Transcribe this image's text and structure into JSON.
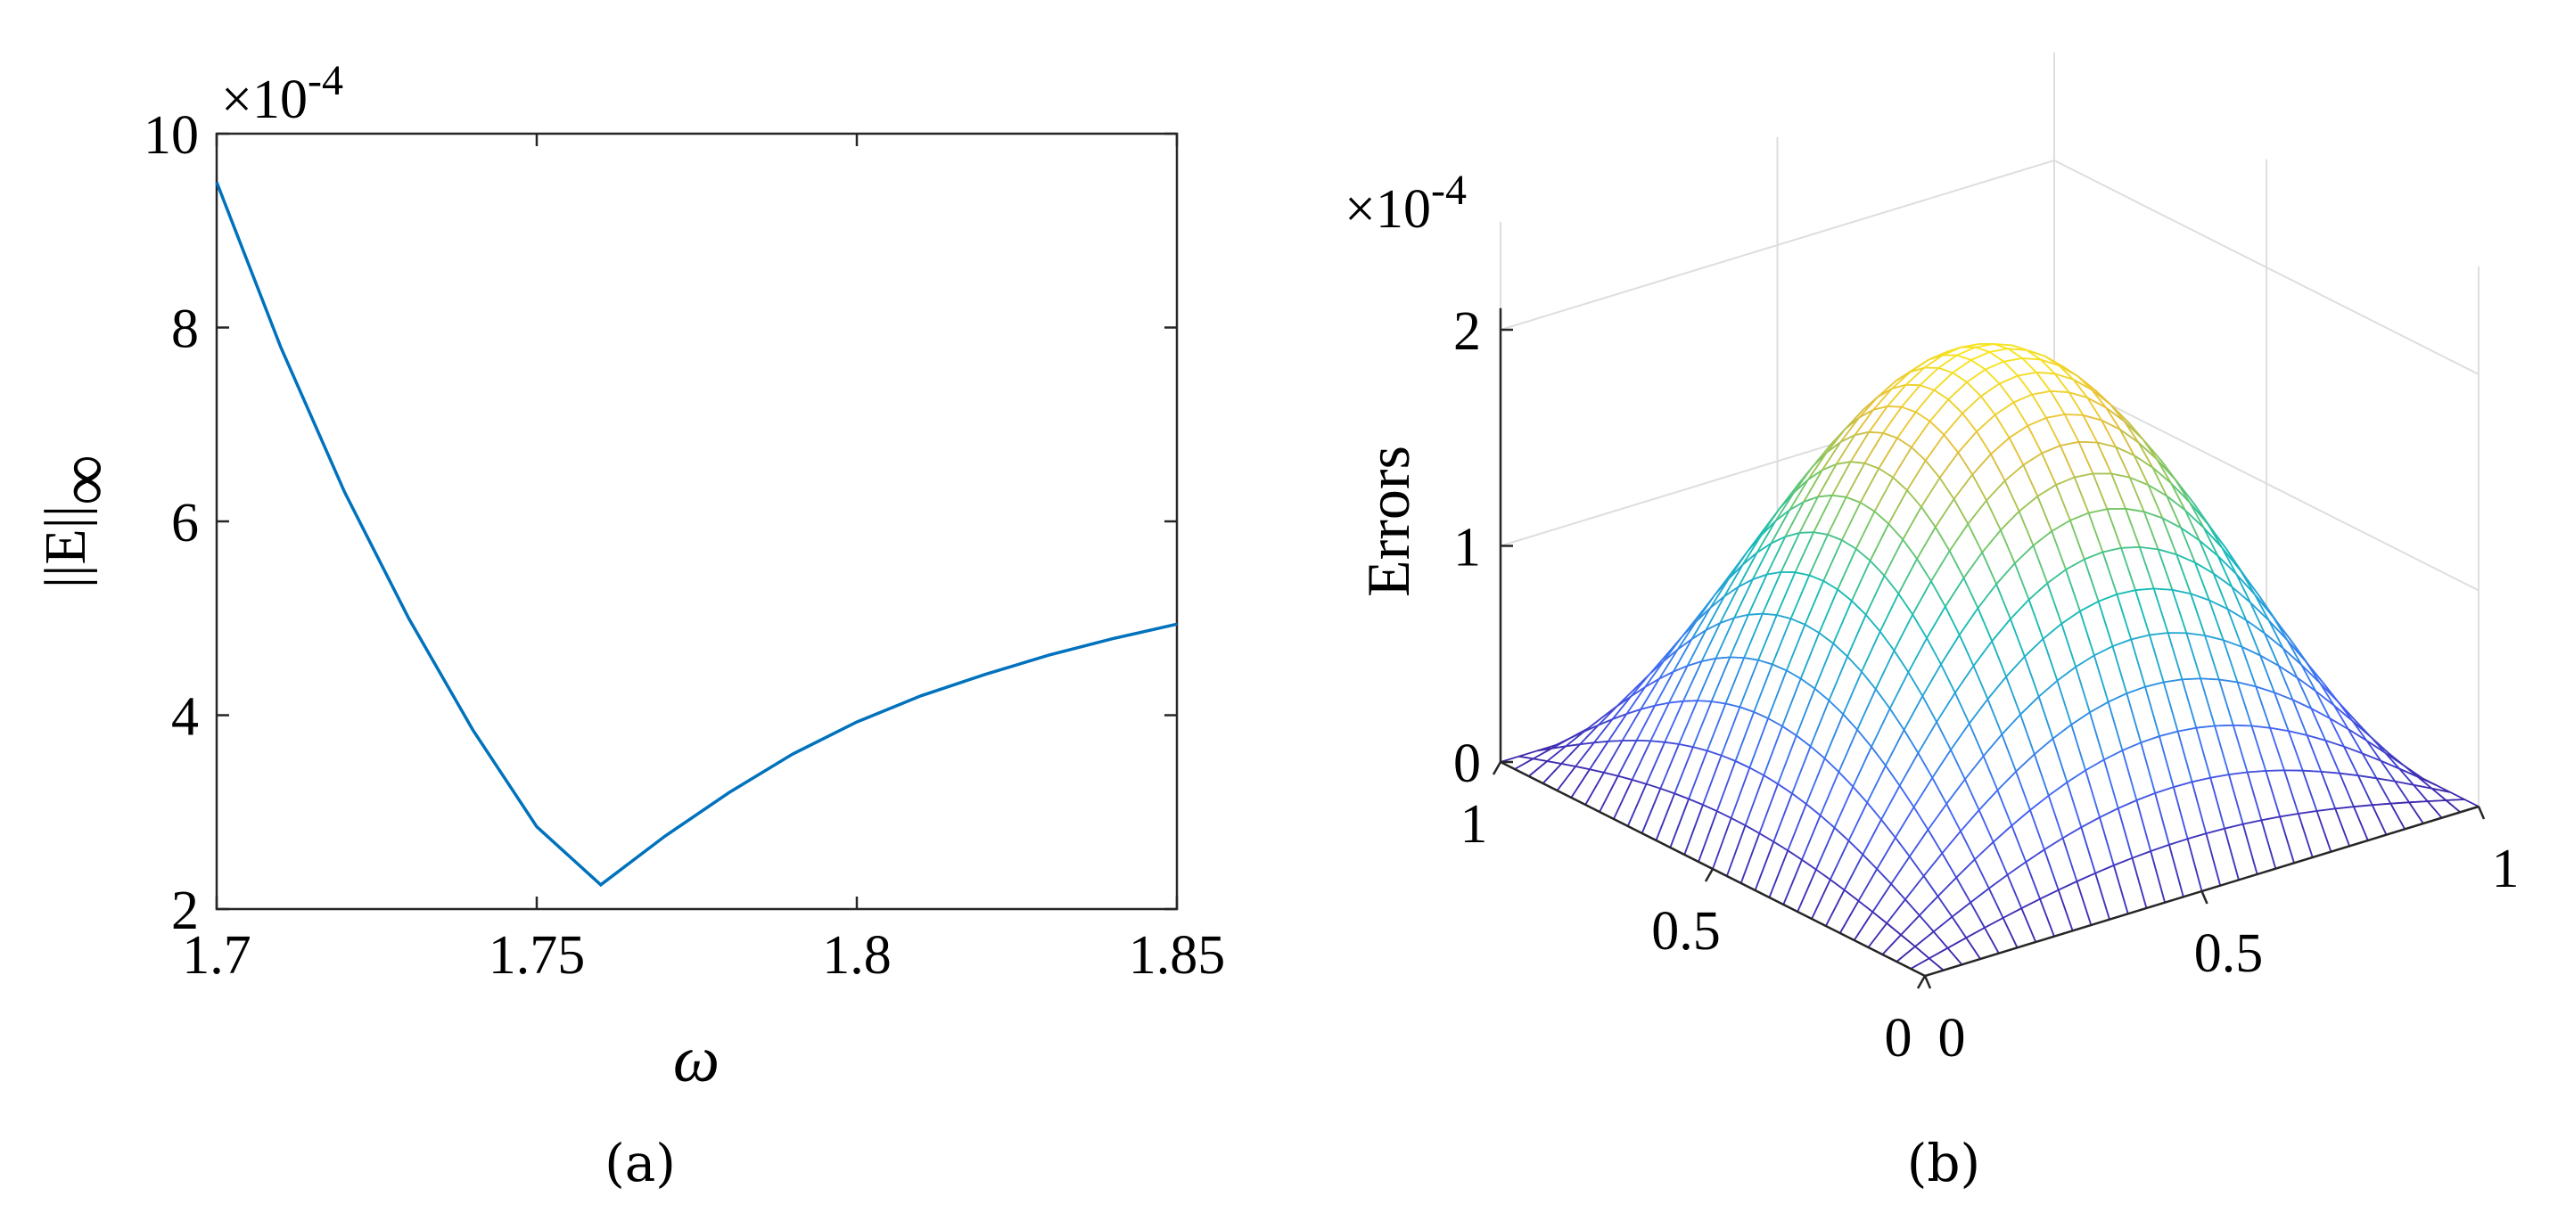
{
  "chart_data": [
    {
      "type": "line",
      "caption": "(a)",
      "xlabel": "ω",
      "ylabel": "||E||",
      "ylabel_subscript": "∞",
      "y_exponent_label": "×10",
      "y_exponent": "-4",
      "xlim": [
        1.7,
        1.85
      ],
      "ylim": [
        2,
        10
      ],
      "xticks": [
        "1.7",
        "1.75",
        "1.8",
        "1.85"
      ],
      "yticks": [
        "2",
        "4",
        "6",
        "8",
        "10"
      ],
      "grid": false,
      "series_color": "#0072BD",
      "series": [
        {
          "x": [
            1.7,
            1.71,
            1.72,
            1.73,
            1.74,
            1.75,
            1.76,
            1.77,
            1.78,
            1.79,
            1.8,
            1.81,
            1.82,
            1.83,
            1.84,
            1.85
          ],
          "y": [
            9.5,
            7.8,
            6.3,
            5.0,
            3.85,
            2.85,
            2.25,
            2.75,
            3.2,
            3.6,
            3.93,
            4.2,
            4.42,
            4.62,
            4.79,
            4.94
          ]
        }
      ]
    },
    {
      "type": "surface",
      "caption": "(b)",
      "zlabel": "Errors",
      "z_exponent_label": "×10",
      "z_exponent": "-4",
      "xlim": [
        0,
        1
      ],
      "ylim": [
        0,
        1
      ],
      "zlim": [
        0,
        2
      ],
      "xticks": [
        "0",
        "0.5",
        "1"
      ],
      "yticks": [
        "0",
        "0.5",
        "1"
      ],
      "zticks": [
        "0",
        "1",
        "2"
      ],
      "grid": true,
      "colormap": "parula",
      "peak_value": 2.0,
      "surface_function": "2 * sin(pi*x) * sin(pi*y)",
      "mesh_lines": 31
    }
  ]
}
